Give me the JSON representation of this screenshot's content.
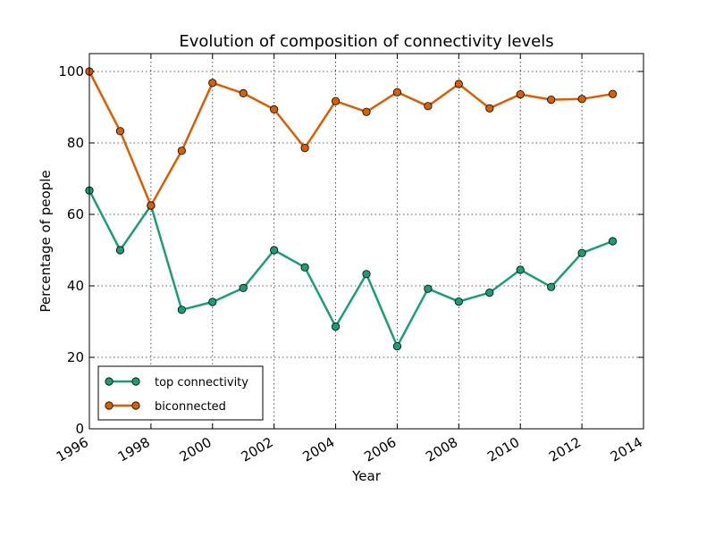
{
  "chart_data": {
    "type": "line",
    "title": "Evolution of composition of connectivity levels",
    "xlabel": "Year",
    "ylabel": "Percentage of people",
    "xlim": [
      1996,
      2014
    ],
    "ylim": [
      0,
      105
    ],
    "x_ticks": [
      "1996",
      "1998",
      "2000",
      "2002",
      "2004",
      "2006",
      "2008",
      "2010",
      "2012",
      "2014"
    ],
    "y_ticks": [
      "0",
      "20",
      "40",
      "60",
      "80",
      "100"
    ],
    "grid": true,
    "legend_position": "lower-left",
    "x": [
      1996,
      1997,
      1998,
      1999,
      2000,
      2001,
      2002,
      2003,
      2004,
      2005,
      2006,
      2007,
      2008,
      2009,
      2010,
      2011,
      2012,
      2013
    ],
    "series": [
      {
        "name": "top connectivity",
        "color": "#1b9e77",
        "values": [
          66.7,
          50.0,
          62.5,
          33.3,
          35.5,
          39.4,
          50.0,
          45.2,
          28.6,
          43.3,
          23.1,
          39.2,
          35.6,
          38.1,
          44.5,
          39.7,
          49.2,
          52.5
        ]
      },
      {
        "name": "biconnected",
        "color": "#d95f02",
        "values": [
          100.0,
          83.3,
          62.5,
          77.8,
          96.8,
          93.9,
          89.4,
          78.6,
          91.7,
          88.7,
          94.2,
          90.3,
          96.5,
          89.7,
          93.6,
          92.1,
          92.3,
          93.7
        ]
      }
    ]
  }
}
